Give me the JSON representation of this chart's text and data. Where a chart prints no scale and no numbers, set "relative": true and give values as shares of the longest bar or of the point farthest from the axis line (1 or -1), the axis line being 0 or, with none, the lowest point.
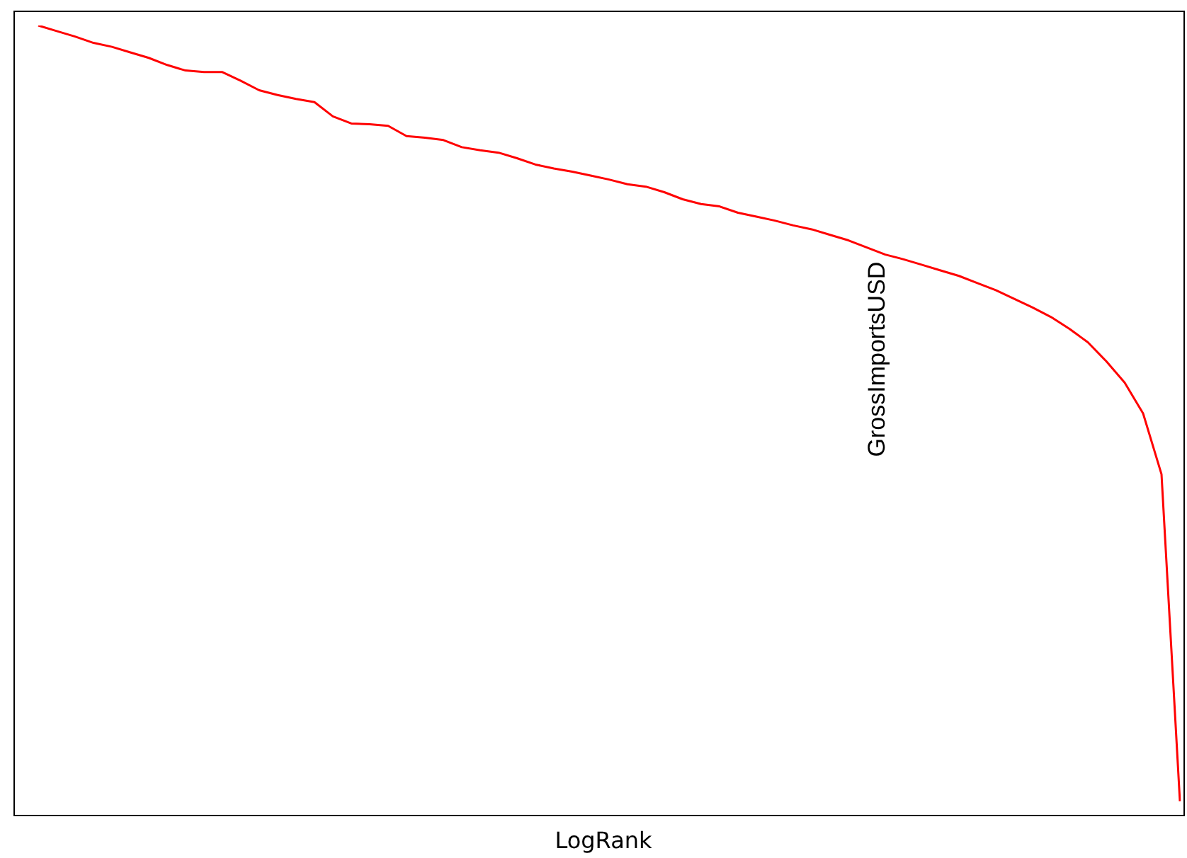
{
  "chart_data": {
    "type": "line",
    "xlabel": "LogRank",
    "relative": true,
    "legend": false,
    "marker": "none",
    "line_style": "solid",
    "categories": [
      null,
      null,
      null,
      null,
      null,
      null,
      null,
      null,
      null,
      null,
      null,
      null,
      null,
      null,
      null,
      null,
      null,
      null,
      null,
      null,
      null,
      null,
      null,
      null,
      null,
      null,
      null,
      null,
      null,
      null,
      null,
      null,
      null,
      null,
      null,
      null,
      null,
      null,
      null,
      null,
      null,
      null,
      null,
      null,
      null,
      null,
      null,
      null,
      null,
      null,
      null,
      null,
      null,
      null,
      null,
      null,
      null,
      null,
      null,
      null,
      null,
      null,
      null
    ],
    "series": [
      {
        "name": "GrossImportsUSD",
        "color": "#ff0000",
        "values": [
          1.0,
          0.993,
          0.986,
          0.978,
          0.973,
          0.966,
          0.959,
          0.95,
          0.943,
          0.941,
          0.941,
          0.93,
          0.918,
          0.912,
          0.907,
          0.903,
          0.885,
          0.876,
          0.875,
          0.873,
          0.86,
          0.858,
          0.855,
          0.846,
          0.842,
          0.839,
          0.832,
          0.824,
          0.819,
          0.815,
          0.81,
          0.805,
          0.799,
          0.796,
          0.789,
          0.78,
          0.774,
          0.771,
          0.763,
          0.758,
          0.753,
          0.747,
          0.742,
          0.735,
          0.728,
          0.719,
          0.71,
          0.704,
          0.697,
          0.69,
          0.683,
          0.674,
          0.665,
          0.654,
          0.643,
          0.631,
          0.616,
          0.599,
          0.575,
          0.548,
          0.509,
          0.432,
          0.018
        ]
      }
    ]
  }
}
